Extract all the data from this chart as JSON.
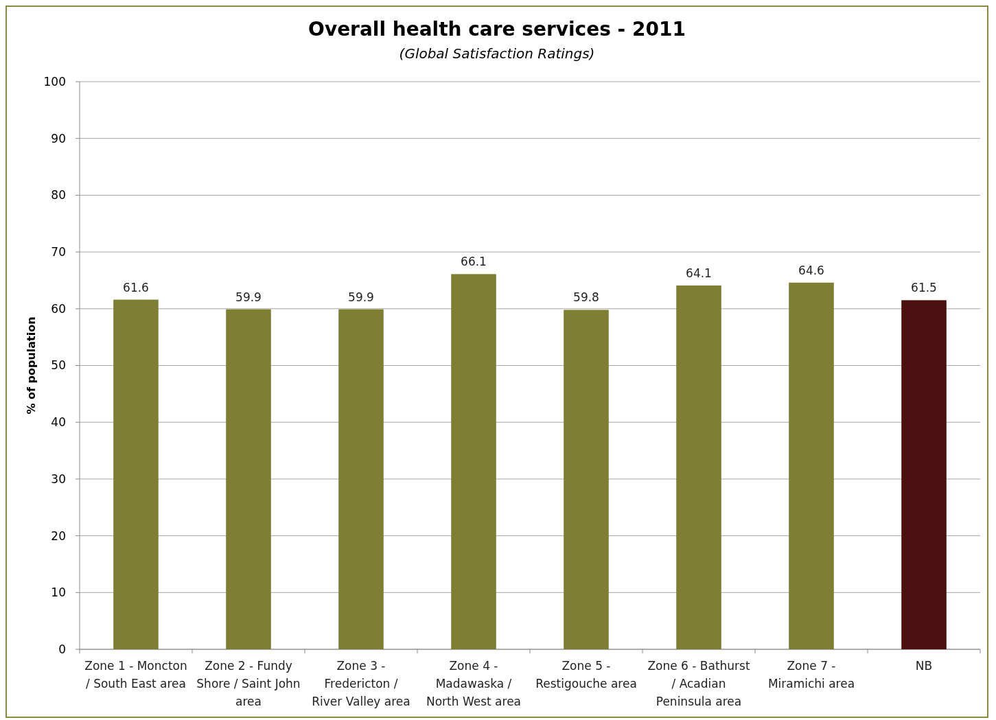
{
  "chart_data": {
    "type": "bar",
    "title": "Overall health care services - 2011",
    "subtitle": "(Global Satisfaction Ratings)",
    "ylabel": "% of population",
    "categories": [
      "Zone 1 - Moncton / South East area",
      "Zone 2 - Fundy Shore / Saint John area",
      "Zone 3 - Fredericton / River Valley area",
      "Zone 4 - Madawaska / North West area",
      "Zone 5 - Restigouche area",
      "Zone 6 - Bathurst / Acadian Peninsula area",
      "Zone 7 - Miramichi area",
      "NB"
    ],
    "values": [
      61.6,
      59.9,
      59.9,
      66.1,
      59.8,
      64.1,
      64.6,
      61.5
    ],
    "colors": [
      "#7f7f33",
      "#7f7f33",
      "#7f7f33",
      "#7f7f33",
      "#7f7f33",
      "#7f7f33",
      "#7f7f33",
      "#4b0f0f"
    ],
    "ylim": [
      0,
      100
    ],
    "yticks": [
      0,
      10,
      20,
      30,
      40,
      50,
      60,
      70,
      80,
      90,
      100
    ],
    "grid": "y",
    "data_labels": true
  }
}
